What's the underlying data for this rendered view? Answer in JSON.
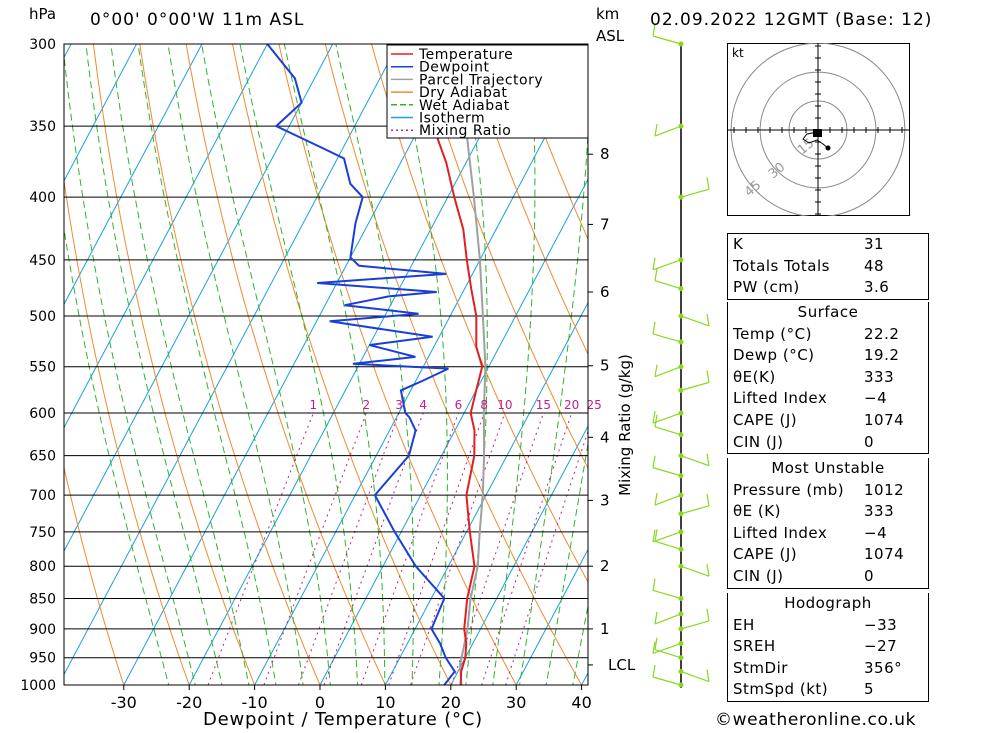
{
  "header": {
    "location": "0°00' 0°00'W 11m ASL",
    "datetime": "02.09.2022 12GMT (Base: 12)",
    "pressure_unit": "hPa",
    "height_unit_line1": "km",
    "height_unit_line2": "ASL"
  },
  "axes": {
    "xlabel": "Dewpoint / Temperature (°C)",
    "mixing_ratio_label": "Mixing Ratio (g/kg)",
    "lcl_label": "LCL"
  },
  "legend": [
    "Temperature",
    "Dewpoint",
    "Parcel Trajectory",
    "Dry Adiabat",
    "Wet Adiabat",
    "Isotherm",
    "Mixing Ratio"
  ],
  "colors": {
    "temperature": "#e02020",
    "dewpoint": "#1a3fd8",
    "parcel": "#a0a0a0",
    "dry_adiabat": "#f08a30",
    "wet_adiabat": "#2cb52c",
    "isotherm": "#1aa0e0",
    "mixing_ratio": "#c0208a",
    "wind": "#88d820"
  },
  "chart_data": {
    "type": "line",
    "title": "",
    "xlabel": "Dewpoint / Temperature (°C)",
    "ylabel": "hPa",
    "x_ticks": [
      -30,
      -20,
      -10,
      0,
      10,
      20,
      30,
      40
    ],
    "pressure_levels": [
      300,
      350,
      400,
      450,
      500,
      550,
      600,
      650,
      700,
      750,
      800,
      850,
      900,
      950,
      1000
    ],
    "height_ticks_km": [
      {
        "label": "1",
        "p": 900
      },
      {
        "label": "2",
        "p": 800
      },
      {
        "label": "3",
        "p": 707
      },
      {
        "label": "4",
        "p": 628
      },
      {
        "label": "5",
        "p": 549
      },
      {
        "label": "6",
        "p": 478
      },
      {
        "label": "7",
        "p": 421
      },
      {
        "label": "8",
        "p": 369
      },
      {
        "label": "LCL",
        "p": 963
      }
    ],
    "mixing_ratio_labels": [
      "1",
      "2",
      "3",
      "4",
      "6",
      "8",
      "10",
      "15",
      "20",
      "25"
    ],
    "mixing_ratio_values": [
      1,
      2,
      3,
      4,
      6,
      8,
      10,
      15,
      20,
      25
    ],
    "series": [
      {
        "name": "Temperature",
        "points": [
          [
            1012,
            22.2
          ],
          [
            1000,
            21.5
          ],
          [
            975,
            20.5
          ],
          [
            950,
            20
          ],
          [
            925,
            19
          ],
          [
            900,
            17.5
          ],
          [
            850,
            15.5
          ],
          [
            800,
            14
          ],
          [
            750,
            10.5
          ],
          [
            700,
            7
          ],
          [
            650,
            5
          ],
          [
            620,
            3
          ],
          [
            600,
            1
          ],
          [
            575,
            0
          ],
          [
            550,
            -1
          ],
          [
            530,
            -3.5
          ],
          [
            500,
            -6
          ],
          [
            475,
            -9
          ],
          [
            450,
            -12
          ],
          [
            425,
            -15
          ],
          [
            400,
            -19
          ],
          [
            375,
            -23
          ],
          [
            350,
            -28
          ],
          [
            325,
            -32
          ],
          [
            300,
            -38
          ]
        ]
      },
      {
        "name": "Dewpoint",
        "points": [
          [
            1012,
            19.2
          ],
          [
            1000,
            19
          ],
          [
            975,
            19.5
          ],
          [
            950,
            17
          ],
          [
            925,
            15
          ],
          [
            900,
            12.5
          ],
          [
            850,
            12
          ],
          [
            800,
            5
          ],
          [
            750,
            -1
          ],
          [
            700,
            -7
          ],
          [
            650,
            -5
          ],
          [
            620,
            -6
          ],
          [
            605,
            -8
          ],
          [
            600,
            -9
          ],
          [
            575,
            -11.5
          ],
          [
            565,
            -9
          ],
          [
            552,
            -6
          ],
          [
            547,
            -21
          ],
          [
            540,
            -12
          ],
          [
            528,
            -20
          ],
          [
            520,
            -11
          ],
          [
            505,
            -28
          ],
          [
            498,
            -15
          ],
          [
            490,
            -27
          ],
          [
            482,
            -21
          ],
          [
            478,
            -14
          ],
          [
            470,
            -33
          ],
          [
            462,
            -14
          ],
          [
            455,
            -28
          ],
          [
            448,
            -30
          ],
          [
            420,
            -32
          ],
          [
            400,
            -33
          ],
          [
            390,
            -36
          ],
          [
            372,
            -39
          ],
          [
            365,
            -43
          ],
          [
            350,
            -52
          ],
          [
            335,
            -50
          ],
          [
            320,
            -53
          ],
          [
            300,
            -60
          ]
        ]
      },
      {
        "name": "Parcel Trajectory",
        "points": [
          [
            1012,
            22.2
          ],
          [
            963,
            19.8
          ],
          [
            900,
            18
          ],
          [
            850,
            16
          ],
          [
            800,
            14.5
          ],
          [
            750,
            12
          ],
          [
            700,
            9.5
          ],
          [
            650,
            6.5
          ],
          [
            600,
            3
          ],
          [
            550,
            -0.5
          ],
          [
            500,
            -5
          ],
          [
            450,
            -10
          ],
          [
            400,
            -16
          ],
          [
            350,
            -23
          ],
          [
            300,
            -32
          ]
        ]
      }
    ],
    "stability": {
      "K": "31",
      "Totals Totals": "48",
      "PW (cm)": "3.6"
    },
    "surface": {
      "Temp (°C)": "22.2",
      "Dewp (°C)": "19.2",
      "θE(K)": "333",
      "Lifted Index": "-4",
      "CAPE (J)": "1074",
      "CIN (J)": "0"
    },
    "most_unstable": {
      "Pressure (mb)": "1012",
      "θE (K)": "333",
      "Lifted Index": "-4",
      "CAPE (J)": "1074",
      "CIN (J)": "0"
    },
    "hodograph_values": {
      "EH": "-33",
      "SREH": "-27",
      "StmDir": "356°",
      "StmSpd (kt)": "5"
    },
    "hodograph_rings": [
      "15",
      "30",
      "45"
    ],
    "hodograph_unit": "kt",
    "grid": true,
    "legend_position": "top-right"
  },
  "panels": {
    "surface_title": "Surface",
    "most_unstable_title": "Most Unstable",
    "hodograph_title": "Hodograph",
    "stability_rows": [
      {
        "label": "K",
        "value": "31"
      },
      {
        "label": "Totals Totals",
        "value": "48"
      },
      {
        "label": "PW (cm)",
        "value": "3.6"
      }
    ],
    "surface_rows": [
      {
        "label": "Temp (°C)",
        "value": "22.2"
      },
      {
        "label": "Dewp (°C)",
        "value": "19.2"
      },
      {
        "label": "θE(K)",
        "value": "333"
      },
      {
        "label": "Lifted Index",
        "value": "−4"
      },
      {
        "label": "CAPE (J)",
        "value": "1074"
      },
      {
        "label": "CIN (J)",
        "value": "0"
      }
    ],
    "mu_rows": [
      {
        "label": "Pressure (mb)",
        "value": "1012"
      },
      {
        "label": "θE (K)",
        "value": "333"
      },
      {
        "label": "Lifted Index",
        "value": "−4"
      },
      {
        "label": "CAPE (J)",
        "value": "1074"
      },
      {
        "label": "CIN (J)",
        "value": "0"
      }
    ],
    "hodo_rows": [
      {
        "label": "EH",
        "value": "−33"
      },
      {
        "label": "SREH",
        "value": "−27"
      },
      {
        "label": "StmDir",
        "value": "356°"
      },
      {
        "label": "StmSpd (kt)",
        "value": "5"
      }
    ]
  },
  "footer": "©weatheronline.co.uk"
}
